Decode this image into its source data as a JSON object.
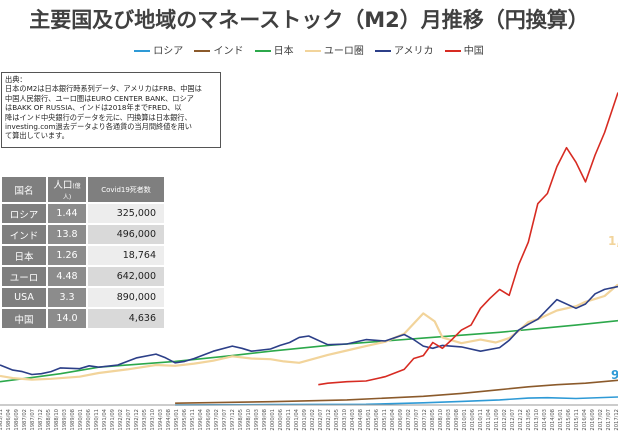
{
  "title": "主要国及び地域のマネーストック（M2）月推移（円換算）",
  "legend": [
    {
      "name": "ロシア",
      "color": "#2e9ad6"
    },
    {
      "name": "インド",
      "color": "#8b5a2b"
    },
    {
      "name": "日本",
      "color": "#2ca84b"
    },
    {
      "name": "ユーロ圏",
      "color": "#f2d49b"
    },
    {
      "name": "アメリカ",
      "color": "#2c3f88"
    },
    {
      "name": "中国",
      "color": "#d72b22"
    }
  ],
  "source_note": [
    "出典：",
    "日本のM2は日本銀行時系列データ、アメリカはFRB、中国は",
    "中国人民銀行、ユーロ圏はEURO CENTER BANK、ロシア",
    "はBAKK OF RUSSIA、インドは2018年までFRED、以",
    "降はインド中央銀行のデータを元に、円換算は日本銀行、",
    "investing.com過去データより各通貨の当月間終値を用い",
    "て算出しています。"
  ],
  "stats_table": {
    "headers": [
      "国名",
      "人口",
      "(億人)",
      "Covid19死者数"
    ],
    "rows": [
      {
        "country": "ロシア",
        "population": "1.44",
        "covid_deaths": "325,000"
      },
      {
        "country": "インド",
        "population": "13.8",
        "covid_deaths": "496,000"
      },
      {
        "country": "日本",
        "population": "1.26",
        "covid_deaths": "18,764"
      },
      {
        "country": "ユーロ",
        "population": "4.48",
        "covid_deaths": "642,000"
      },
      {
        "country": "USA",
        "population": "3.3",
        "covid_deaths": "890,000"
      },
      {
        "country": "中国",
        "population": "14.0",
        "covid_deaths": "4,636"
      }
    ]
  },
  "chart_data": {
    "type": "line",
    "title": "主要国及び地域のマネーストック（M2）月推移（円換算）",
    "xlabel": "",
    "ylabel": "",
    "x_tick_labels": [
      "1985/11",
      "1986/04",
      "1986/09",
      "1987/02",
      "1987/07",
      "1987/12",
      "1988/05",
      "1988/10",
      "1989/03",
      "1989/08",
      "1990/01",
      "1990/06",
      "1990/11",
      "1991/04",
      "1991/09",
      "1992/02",
      "1992/07",
      "1992/12",
      "1993/05",
      "1993/10",
      "1994/03",
      "1994/08",
      "1995/01",
      "1995/06",
      "1995/11",
      "1996/04",
      "1996/09",
      "1997/02",
      "1997/07",
      "1997/12",
      "1998/05",
      "1998/10",
      "1999/03",
      "1999/08",
      "2000/01",
      "2000/06",
      "2000/11",
      "2001/04",
      "2001/09",
      "2002/02",
      "2002/07",
      "2002/12",
      "2003/05",
      "2003/10",
      "2004/03",
      "2004/08",
      "2005/01",
      "2005/06",
      "2005/11",
      "2006/04",
      "2006/09",
      "2007/02",
      "2007/07",
      "2007/12",
      "2008/05",
      "2008/10",
      "2009/03",
      "2009/08",
      "2010/01",
      "2010/06",
      "2010/11",
      "2011/04",
      "2011/09",
      "2012/02",
      "2012/07",
      "2012/12",
      "2013/05",
      "2013/10",
      "2014/03",
      "2014/08",
      "2015/01",
      "2015/06",
      "2015/11",
      "2016/04",
      "2016/09",
      "2017/02",
      "2017/07",
      "2017/12"
    ],
    "x_range": [
      1985.83,
      2018.2
    ],
    "grid": false,
    "legend_position": "top",
    "visible_value_labels": [
      {
        "series": "ロシア",
        "text": "9"
      },
      {
        "series": "ユーロ圏",
        "text": "1,"
      }
    ],
    "series": [
      {
        "name": "ロシア",
        "color": "#2e9ad6",
        "x": [
          1995.0,
          2000.0,
          2005.0,
          2008.0,
          2010.0,
          2012.0,
          2013.5,
          2014.5,
          2016.0,
          2018.2
        ],
        "y": [
          0.02,
          0.05,
          0.1,
          0.3,
          0.5,
          0.7,
          0.95,
          1.0,
          0.9,
          1.1
        ]
      },
      {
        "name": "インド",
        "color": "#8b5a2b",
        "x": [
          1995.0,
          2000.0,
          2004.0,
          2008.0,
          2010.0,
          2012.0,
          2013.5,
          2015.0,
          2016.5,
          2018.2
        ],
        "y": [
          0.25,
          0.45,
          0.7,
          1.2,
          1.6,
          2.1,
          2.5,
          2.8,
          3.0,
          3.4
        ]
      },
      {
        "name": "日本",
        "color": "#2ca84b",
        "x": [
          1985.83,
          1987.0,
          1989.0,
          1991.0,
          1993.0,
          1995.0,
          1998.0,
          2000.0,
          2003.0,
          2006.0,
          2008.0,
          2010.0,
          2012.0,
          2014.0,
          2016.0,
          2018.2
        ],
        "y": [
          3.2,
          3.6,
          4.3,
          5.2,
          5.6,
          6.0,
          6.8,
          7.4,
          8.2,
          8.8,
          9.2,
          9.6,
          10.0,
          10.5,
          11.0,
          11.6
        ]
      },
      {
        "name": "ユーロ圏",
        "color": "#f2d49b",
        "x": [
          1985.83,
          1986.5,
          1987.5,
          1988.5,
          1990.0,
          1991.0,
          1992.5,
          1994.0,
          1995.0,
          1996.0,
          1997.0,
          1998.0,
          1999.0,
          2000.0,
          2000.7,
          2001.5,
          2003.0,
          2004.0,
          2005.0,
          2006.0,
          2007.0,
          2008.0,
          2008.6,
          2009.0,
          2010.0,
          2011.0,
          2011.8,
          2012.5,
          2013.0,
          2013.5,
          2014.0,
          2015.0,
          2016.0,
          2016.5,
          2017.0,
          2017.5,
          2018.2
        ],
        "y": [
          4.0,
          3.7,
          3.5,
          3.6,
          3.9,
          4.4,
          4.9,
          5.5,
          5.4,
          5.7,
          6.1,
          6.7,
          6.4,
          6.3,
          6.0,
          5.8,
          6.9,
          7.5,
          8.1,
          8.7,
          9.8,
          12.6,
          11.5,
          9.3,
          8.5,
          9.0,
          8.6,
          9.2,
          10.2,
          11.4,
          11.8,
          13.0,
          13.6,
          14.2,
          14.6,
          15.0,
          16.6
        ]
      },
      {
        "name": "アメリカ",
        "color": "#2c3f88",
        "x": [
          1985.83,
          1986.5,
          1987.0,
          1987.5,
          1988.0,
          1988.5,
          1989.0,
          1990.0,
          1990.5,
          1991.0,
          1992.0,
          1993.0,
          1994.0,
          1994.5,
          1995.0,
          1995.5,
          1996.0,
          1997.0,
          1998.0,
          1998.5,
          1999.0,
          2000.0,
          2000.5,
          2001.0,
          2001.5,
          2002.0,
          2003.0,
          2004.0,
          2005.0,
          2006.0,
          2007.0,
          2007.5,
          2008.0,
          2008.5,
          2009.0,
          2010.0,
          2011.0,
          2012.0,
          2012.5,
          2013.0,
          2013.5,
          2014.0,
          2015.0,
          2016.0,
          2016.5,
          2017.0,
          2017.5,
          2018.2
        ],
        "y": [
          5.5,
          4.8,
          4.6,
          4.2,
          4.3,
          4.6,
          5.1,
          5.0,
          5.4,
          5.2,
          5.5,
          6.5,
          7.0,
          6.5,
          5.8,
          6.0,
          6.4,
          7.4,
          8.1,
          7.8,
          7.4,
          7.7,
          8.2,
          8.6,
          9.3,
          9.5,
          8.3,
          8.4,
          9.0,
          8.8,
          9.7,
          9.0,
          8.1,
          7.8,
          8.2,
          8.0,
          7.4,
          7.9,
          8.9,
          10.3,
          11.1,
          11.8,
          14.5,
          13.3,
          13.9,
          15.3,
          15.9,
          16.3
        ]
      },
      {
        "name": "中国",
        "color": "#d72b22",
        "x": [
          2002.5,
          2003.0,
          2004.0,
          2005.0,
          2006.0,
          2007.0,
          2007.5,
          2008.0,
          2008.5,
          2009.0,
          2009.5,
          2010.0,
          2010.5,
          2011.0,
          2011.5,
          2012.0,
          2012.5,
          2013.0,
          2013.5,
          2014.0,
          2014.5,
          2015.0,
          2015.5,
          2016.0,
          2016.5,
          2017.0,
          2017.5,
          2018.2
        ],
        "y": [
          2.8,
          3.0,
          3.2,
          3.3,
          3.9,
          4.9,
          6.4,
          6.8,
          8.6,
          7.8,
          9.0,
          10.3,
          11.0,
          13.3,
          14.7,
          15.9,
          15.1,
          19.3,
          22.4,
          27.7,
          29.1,
          32.8,
          35.4,
          33.4,
          30.7,
          34.4,
          37.5,
          43.0
        ]
      }
    ]
  }
}
